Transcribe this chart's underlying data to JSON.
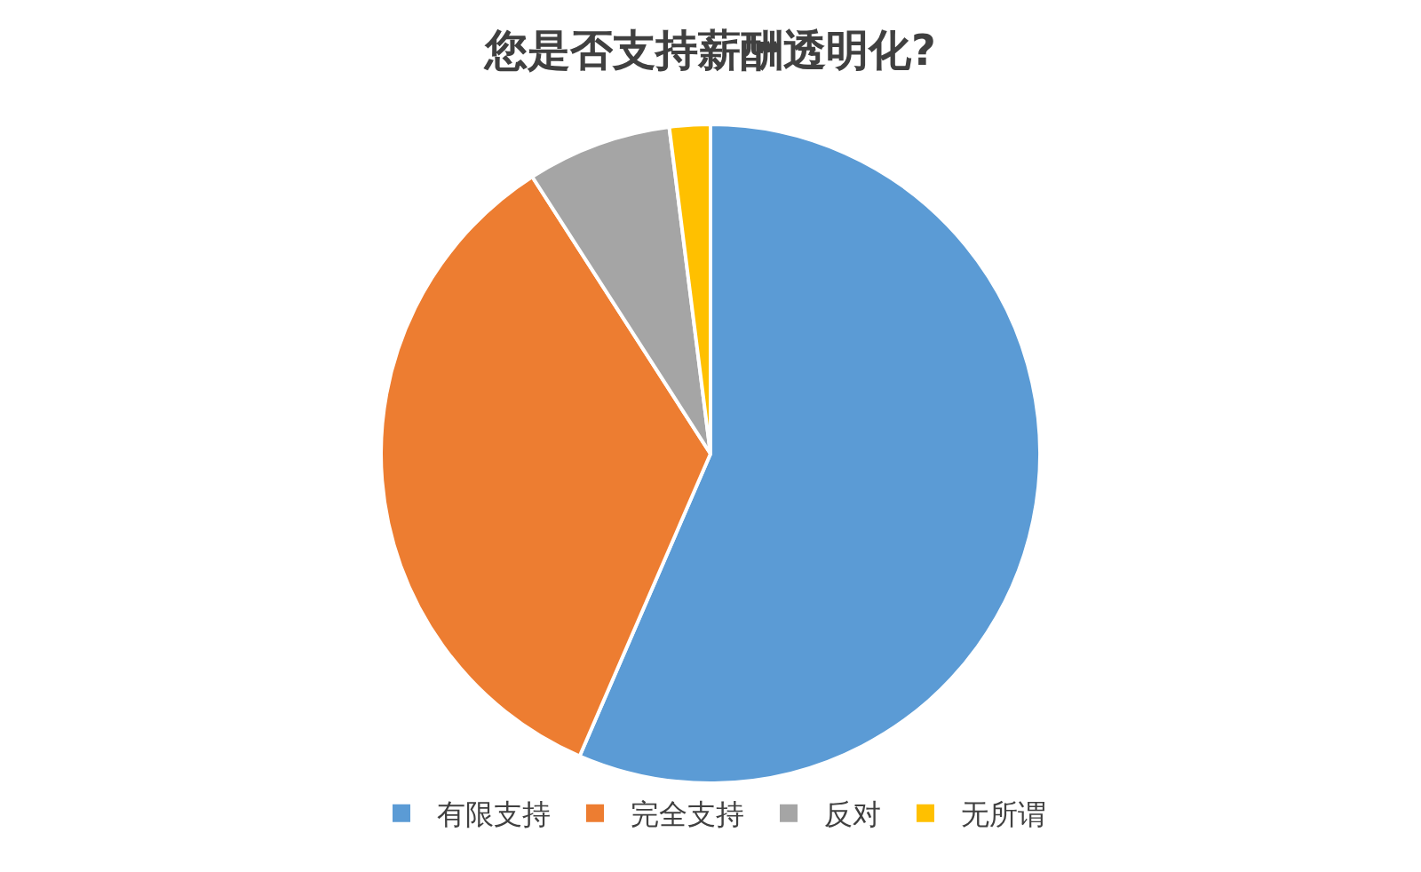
{
  "chart_data": {
    "type": "pie",
    "title": "您是否支持薪酬透明化?",
    "categories": [
      "有限支持",
      "完全支持",
      "反对",
      "无所谓"
    ],
    "values": [
      56.5,
      34.4,
      7.1,
      2.0
    ],
    "colors": [
      "#5b9bd5",
      "#ed7d31",
      "#a5a5a5",
      "#ffc000"
    ],
    "legend": "bottom"
  }
}
